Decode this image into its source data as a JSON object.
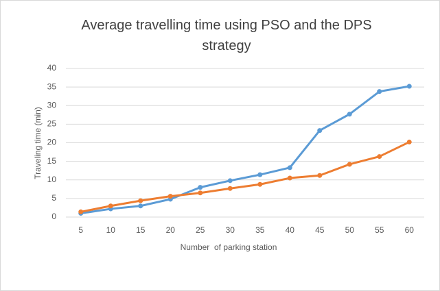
{
  "chart_data": {
    "type": "line",
    "title": "Average travelling time using PSO and the DPS strategy",
    "x_label": "Number  of parking station",
    "y_label": "Traveling time (min)",
    "categories": [
      "5",
      "10",
      "15",
      "20",
      "25",
      "30",
      "35",
      "40",
      "45",
      "50",
      "55",
      "60"
    ],
    "series": [
      {
        "color": "#5b9bd5",
        "values": [
          1.0,
          2.2,
          3.0,
          4.8,
          8.0,
          9.8,
          11.4,
          13.3,
          23.3,
          27.7,
          33.8,
          35.2
        ]
      },
      {
        "color": "#ed7d31",
        "values": [
          1.4,
          3.0,
          4.4,
          5.6,
          6.5,
          7.7,
          8.8,
          10.5,
          11.2,
          14.2,
          16.3,
          20.2
        ]
      }
    ],
    "ylim": [
      0,
      40
    ],
    "yticks": [
      0,
      5,
      10,
      15,
      20,
      25,
      30,
      35,
      40
    ],
    "grid": true
  }
}
